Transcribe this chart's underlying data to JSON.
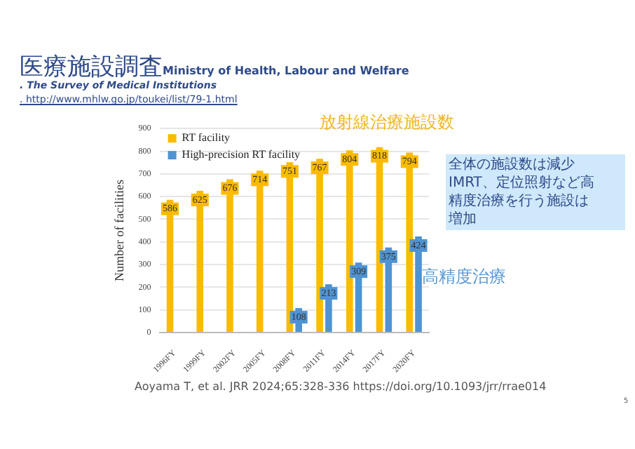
{
  "chart_data": {
    "type": "bar",
    "title": "医療施設調査",
    "subtitle": "Ministry of Health, Labour and Welfare",
    "ylabel": "Number of facilities",
    "categories": [
      "1996FY",
      "1999FY",
      "2002FY",
      "2005FY",
      "2008FY",
      "2011FY",
      "2014FY",
      "2017FY",
      "2020FY"
    ],
    "series": [
      {
        "name": "RT facility",
        "color": "#fbbb00",
        "values": [
          586,
          625,
          676,
          714,
          751,
          767,
          804,
          818,
          794
        ]
      },
      {
        "name": "High-precision RT facility",
        "color": "#4f93d2",
        "values": [
          null,
          null,
          null,
          null,
          108,
          213,
          309,
          375,
          424
        ]
      }
    ],
    "ylim": [
      0,
      900
    ],
    "yticks": [
      0,
      100,
      200,
      300,
      400,
      500,
      600,
      700,
      800,
      900
    ],
    "grid": "y",
    "legend": "top left",
    "data_labels": true,
    "annotations": [
      ". The Survey of Medical Institutions",
      ". http://www.mhlw.go.jp/toukei/list/79-1.html",
      "放射線治療施設数",
      "高精度治療",
      "全体の施設数は減少IMRT、定位照射など高精度治療を行う施設は増加",
      "Aoyama T, et al. JRR 2024;65:328-336 https://doi.org/10.1093/jrr/rrae014",
      "5"
    ]
  }
}
